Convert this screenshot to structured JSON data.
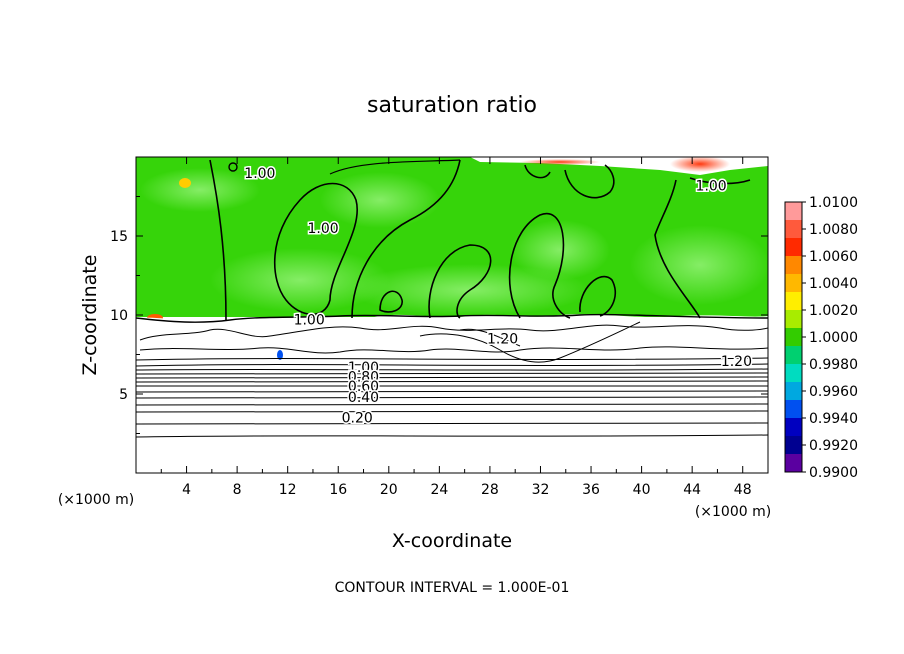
{
  "chart_data": {
    "type": "contour",
    "title": "saturation ratio",
    "xlabel": "X-coordinate",
    "ylabel": "Z-coordinate",
    "x_unit_left": "(×1000 m)",
    "x_unit_right": "(×1000 m)",
    "xlim": [
      0,
      50
    ],
    "ylim": [
      0,
      20
    ],
    "x_ticks": [
      4,
      8,
      12,
      16,
      20,
      24,
      28,
      32,
      36,
      40,
      44,
      48
    ],
    "y_ticks": [
      5,
      10,
      15
    ],
    "footer": "CONTOUR INTERVAL = 1.000E-01",
    "colorbar": {
      "labels": [
        "1.0100",
        "1.0080",
        "1.0060",
        "1.0040",
        "1.0020",
        "1.0000",
        "0.9980",
        "0.9960",
        "0.9940",
        "0.9920",
        "0.9900"
      ],
      "colors": [
        "#ff9a9a",
        "#ff5a3c",
        "#ff2a00",
        "#ff8800",
        "#ffb800",
        "#ffee00",
        "#a8ec00",
        "#33cc00",
        "#00d070",
        "#00dcc0",
        "#00a8e0",
        "#0050f0",
        "#0000c0",
        "#000090",
        "#5a00a0"
      ]
    },
    "contour_labels": [
      {
        "text": "1.00",
        "x": 9.8,
        "y": 19.0
      },
      {
        "text": "1.00",
        "x": 45.5,
        "y": 18.2
      },
      {
        "text": "1.00",
        "x": 14.8,
        "y": 15.5
      },
      {
        "text": "1.00",
        "x": 13.7,
        "y": 9.7
      },
      {
        "text": "1.20",
        "x": 29.0,
        "y": 8.5
      },
      {
        "text": "1.20",
        "x": 47.5,
        "y": 7.1
      },
      {
        "text": "1.00",
        "x": 18.0,
        "y": 6.7
      },
      {
        "text": "0.80",
        "x": 18.0,
        "y": 6.1
      },
      {
        "text": "0.60",
        "x": 18.0,
        "y": 5.5
      },
      {
        "text": "0.40",
        "x": 18.0,
        "y": 4.8
      },
      {
        "text": "0.20",
        "x": 17.5,
        "y": 3.5
      }
    ]
  }
}
